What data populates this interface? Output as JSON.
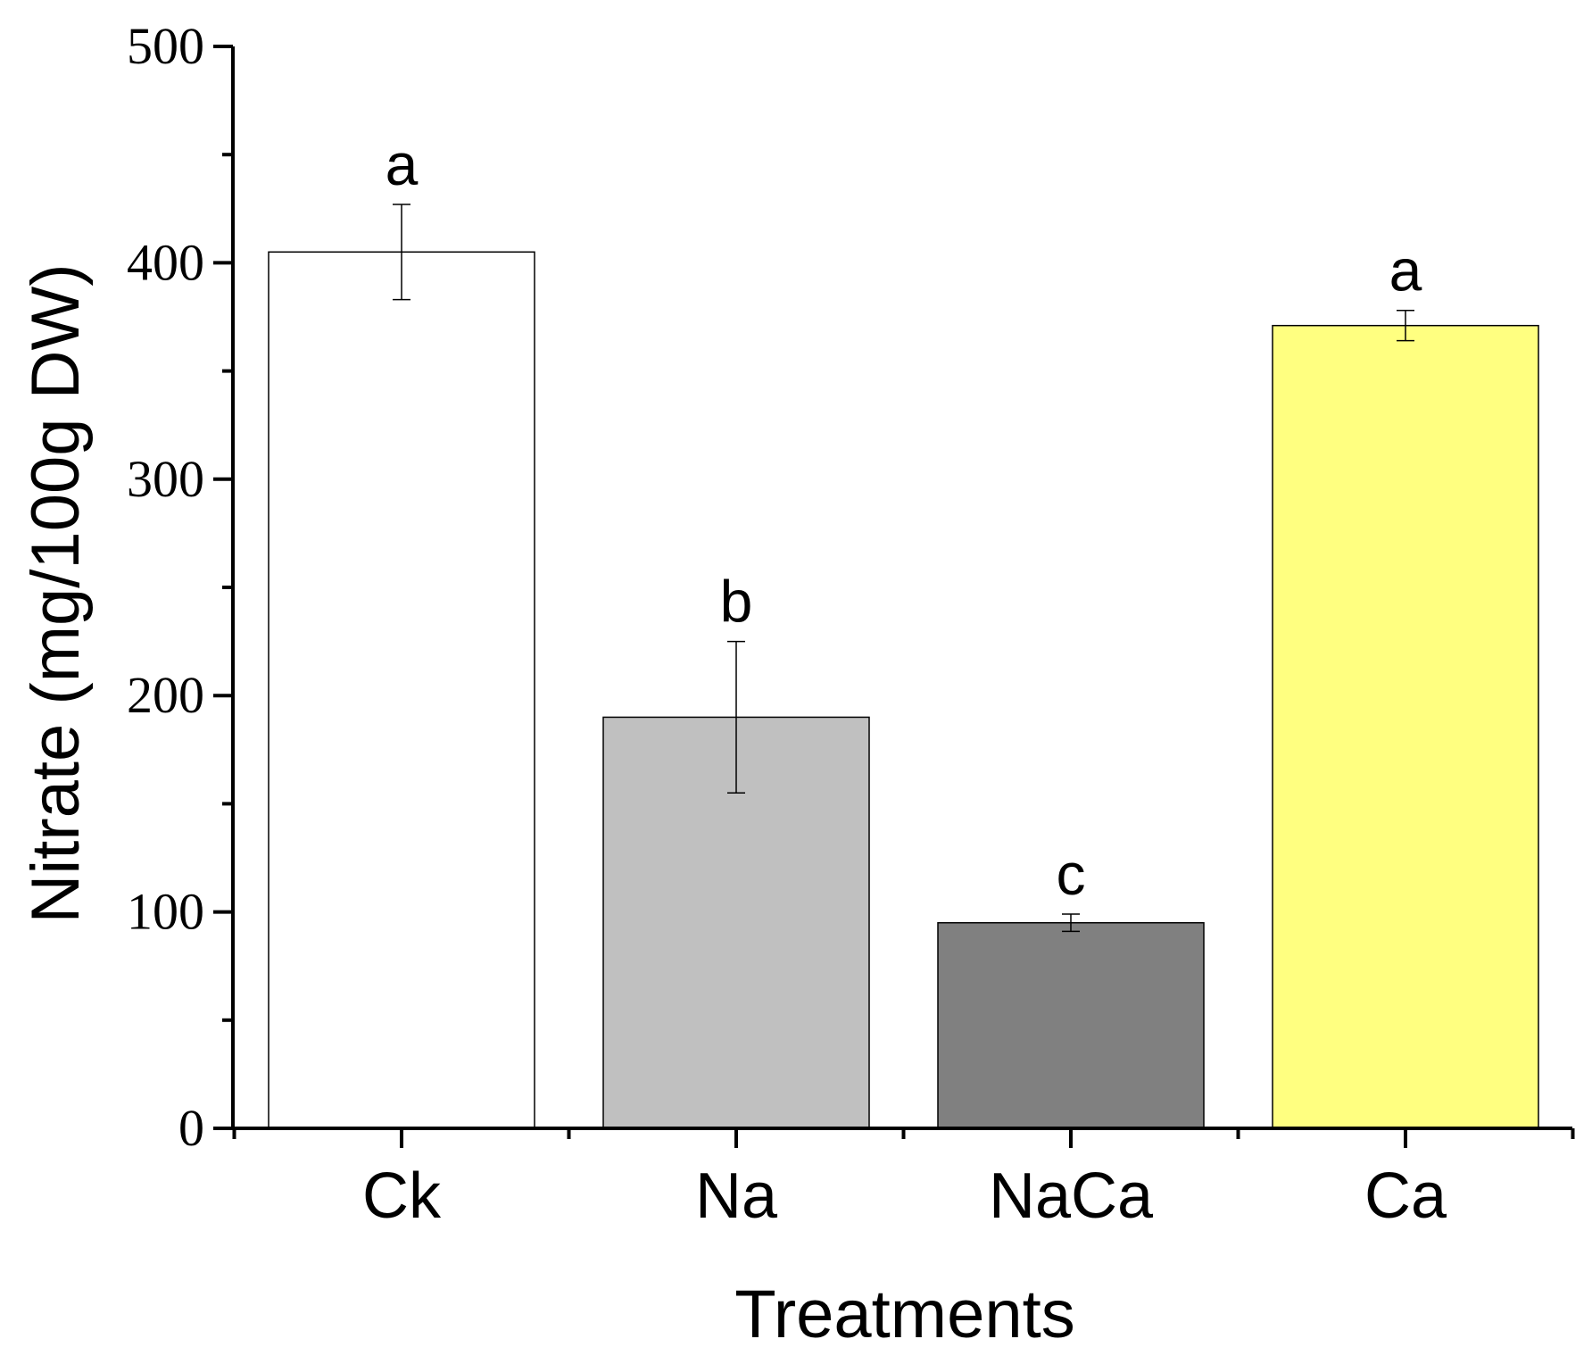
{
  "chart_data": {
    "type": "bar",
    "title": "",
    "xlabel": "Treatments",
    "ylabel": "Nitrate (mg/100g DW)",
    "ylim": [
      0,
      500
    ],
    "yticks_major": [
      0,
      100,
      200,
      300,
      400,
      500
    ],
    "ytick_labels": [
      "0",
      "100",
      "200",
      "300",
      "400",
      "500"
    ],
    "yticks_minor": [
      50,
      150,
      250,
      350,
      450
    ],
    "grid": false,
    "legend": "none",
    "categories": [
      "Ck",
      "Na",
      "NaCa",
      "Ca"
    ],
    "values": [
      405,
      190,
      95,
      371
    ],
    "errors": [
      22,
      35,
      4,
      7
    ],
    "significance_letters": [
      "a",
      "b",
      "c",
      "a"
    ],
    "bar_colors": [
      "#ffffff",
      "#c0c0c0",
      "#808080",
      "#ffff80"
    ],
    "edge_color": "#000000"
  }
}
